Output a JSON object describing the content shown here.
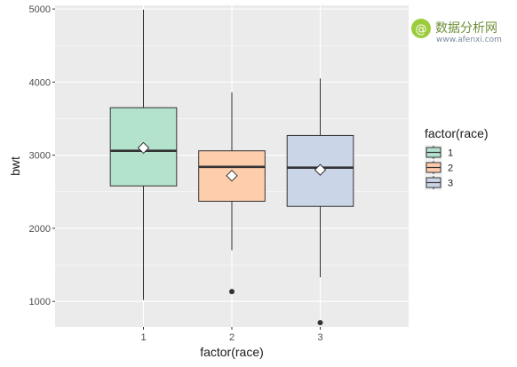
{
  "chart_data": {
    "type": "boxplot",
    "xlabel": "factor(race)",
    "ylabel": "bwt",
    "categories": [
      "1",
      "2",
      "3"
    ],
    "ylim": [
      650,
      5050
    ],
    "yticks": [
      1000,
      2000,
      3000,
      4000,
      5000
    ],
    "grid": true,
    "legend": {
      "title": "factor(race)",
      "placement": "right",
      "entries": [
        "1",
        "2",
        "3"
      ]
    },
    "boxes": [
      {
        "category": "1",
        "whisker_low": 1020,
        "q1": 2580,
        "median": 3060,
        "q3": 3650,
        "whisker_high": 4990,
        "mean": 3100,
        "outliers": [],
        "color": "#b3e2cd"
      },
      {
        "category": "2",
        "whisker_low": 1700,
        "q1": 2370,
        "median": 2840,
        "q3": 3060,
        "whisker_high": 3860,
        "mean": 2720,
        "outliers": [
          1135
        ],
        "color": "#fdcdac"
      },
      {
        "category": "3",
        "whisker_low": 1330,
        "q1": 2300,
        "median": 2830,
        "q3": 3270,
        "whisker_high": 4050,
        "mean": 2800,
        "outliers": [
          710
        ],
        "color": "#cbd5e8"
      }
    ]
  },
  "watermark": {
    "title": "数据分析网",
    "url": "www.afenxi.com",
    "colors": {
      "logo": "#9ccc3c",
      "text": "#6f8f3a"
    }
  },
  "colors": {
    "panel": "#ebebeb",
    "grid_major": "#ffffff",
    "line": "#333333"
  }
}
